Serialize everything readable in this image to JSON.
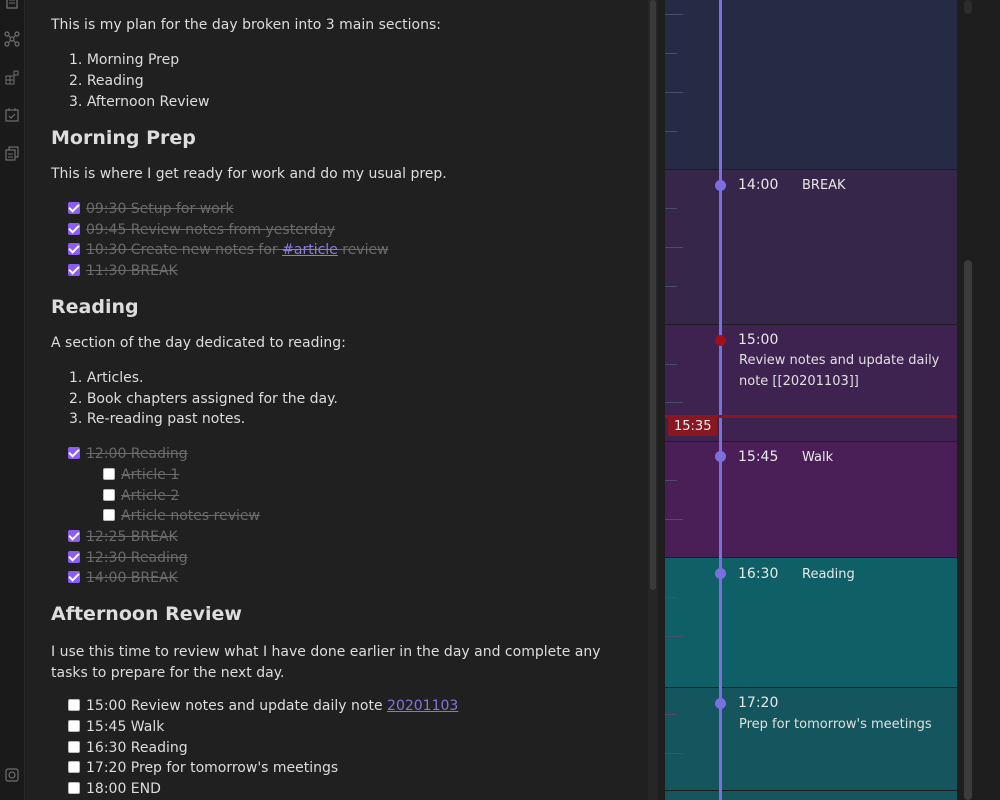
{
  "intro": "This is my plan for the day broken into 3 main sections:",
  "sections_list": [
    "Morning Prep",
    "Reading",
    "Afternoon Review"
  ],
  "morning": {
    "heading": "Morning Prep",
    "text": "This is where I get ready for work and do my usual prep.",
    "tasks": [
      {
        "label": "09:30 Setup for work"
      },
      {
        "label": "09:45 Review notes from yesterday"
      },
      {
        "label_prefix": "10:30 Create new notes for ",
        "tag": "#article",
        "label_suffix": " review"
      },
      {
        "label": "11:30 BREAK"
      }
    ]
  },
  "reading": {
    "heading": "Reading",
    "text": "A section of the day dedicated to reading:",
    "list": [
      "Articles.",
      "Book chapters assigned for the day.",
      "Re-reading past notes."
    ],
    "tasks": [
      {
        "label": "12:00 Reading",
        "checked": true
      },
      {
        "label": "Article 1",
        "checked": false
      },
      {
        "label": "Article 2",
        "checked": false
      },
      {
        "label": "Article notes review",
        "checked": false
      },
      {
        "label": "12:25 BREAK",
        "checked": true
      },
      {
        "label": "12:30 Reading",
        "checked": true
      },
      {
        "label": "14:00 BREAK",
        "checked": true
      }
    ]
  },
  "afternoon": {
    "heading": "Afternoon Review",
    "text": "I use this time to review what I have done earlier in the day and complete any tasks to prepare for the next day.",
    "tasks": [
      {
        "label": "15:00 Review notes and update daily note ",
        "link": "20201103"
      },
      {
        "label": "15:45 Walk"
      },
      {
        "label": "16:30 Reading"
      },
      {
        "label": "17:20 Prep for tomorrow's meetings"
      },
      {
        "label": "18:00 END"
      }
    ]
  },
  "timeline": {
    "now": "15:35",
    "events": [
      {
        "time": "14:00",
        "name": "BREAK",
        "color": "#35264a"
      },
      {
        "time": "15:00",
        "desc": "Review notes and update daily note [[20201103]]",
        "color": "#3e2250"
      },
      {
        "time": "15:45",
        "name": "Walk",
        "color": "#4a1f58"
      },
      {
        "time": "16:30",
        "name": "Reading",
        "color": "#0f5f66"
      },
      {
        "time": "17:20",
        "desc": "Prep for tomorrow's meetings",
        "color": "#14555e"
      }
    ],
    "colors": {
      "background": "#262a45",
      "line": "#7b6fe0",
      "now": "#8a1620"
    }
  },
  "icons": [
    "graph-icon",
    "blocks-icon",
    "calendar-check-icon",
    "copy-icon",
    "settings-icon"
  ]
}
